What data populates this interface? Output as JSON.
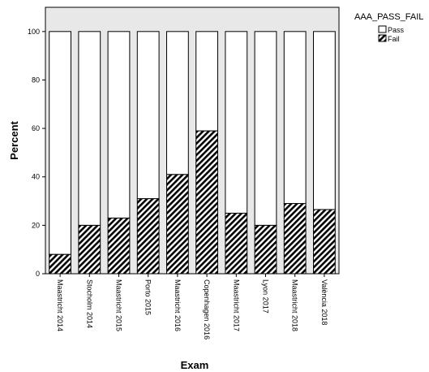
{
  "chart_data": {
    "type": "bar",
    "stacked": true,
    "xlabel": "Exam",
    "ylabel": "Percent",
    "ylim": [
      0,
      110
    ],
    "yticks": [
      0,
      20,
      40,
      60,
      80,
      100
    ],
    "categories": [
      "Maastricht 2014",
      "Stocholm 2014",
      "Maastricht 2015",
      "Porto 2015",
      "Maastricht 2016",
      "Copenhagen 2016",
      "Maastricht 2017",
      "Lyon 2017",
      "Maastricht 2018",
      "València 2018"
    ],
    "series": [
      {
        "name": "Fail",
        "pattern": "hatched",
        "values": [
          8,
          20,
          23,
          31,
          41,
          59,
          25,
          20,
          29,
          26.5
        ]
      },
      {
        "name": "Pass",
        "pattern": "solid-white",
        "values": [
          92,
          80,
          77,
          69,
          59,
          41,
          75,
          80,
          71,
          73.5
        ]
      }
    ],
    "legend": {
      "title": "AAA_PASS_FAIL",
      "placement": "top-right",
      "entries": [
        "Pass",
        "Fail"
      ]
    },
    "colors": {
      "plot_background": "#e8e8e8",
      "bar_fill": "#ffffff",
      "bar_stroke": "#000000",
      "hatch": "#000000"
    }
  }
}
